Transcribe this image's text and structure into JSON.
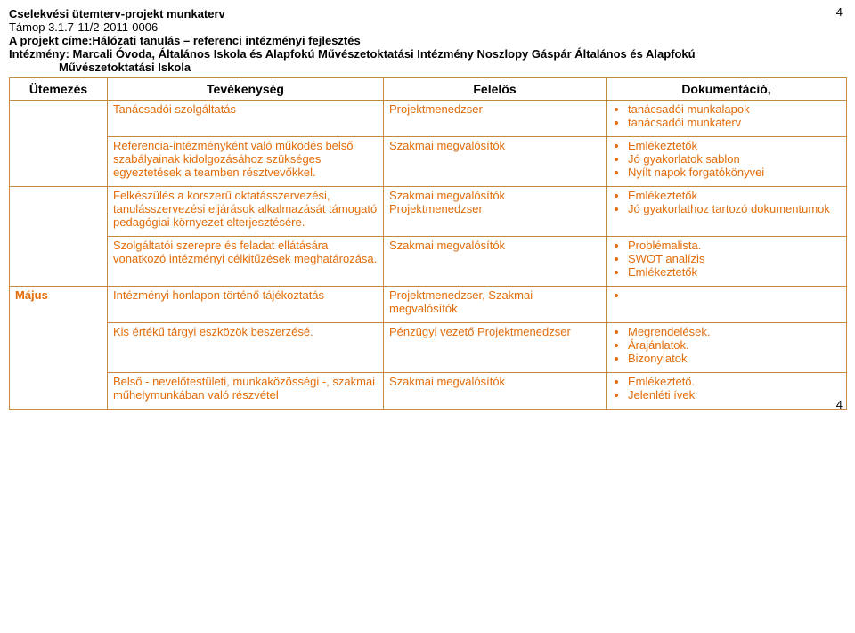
{
  "page_number_top": "4",
  "page_number_bottom": "4",
  "header": {
    "title": "Cselekvési ütemterv-projekt munkaterv",
    "line2": "Támop 3.1.7-11/2-2011-0006",
    "line3": "A projekt címe:Hálózati tanulás – referenci intézményi fejlesztés",
    "line4": "Intézmény: Marcali Óvoda, Általános Iskola és Alapfokú Művészetoktatási Intézmény Noszlopy Gáspár Általános és Alapfokú",
    "line5": "Művészetoktatási Iskola"
  },
  "columns": {
    "c1": "Ütemezés",
    "c2": "Tevékenység",
    "c3": "Felelős",
    "c4": "Dokumentáció,"
  },
  "rows": [
    {
      "activity": "Tanácsadói szolgáltatás",
      "responsible": "Projektmenedzser",
      "docs": [
        "tanácsadói munkalapok",
        "tanácsadói munkaterv"
      ]
    },
    {
      "activity": "Referencia-intézményként való működés belső szabályainak kidolgozásához szükséges egyeztetések a teamben résztvevőkkel.",
      "responsible": "Szakmai megvalósítók",
      "docs": [
        "Emlékeztetők",
        "Jó gyakorlatok sablon",
        "Nyílt napok forgatókönyvei"
      ]
    },
    {
      "activity": "Felkészülés a korszerű oktatásszervezési, tanulásszervezési eljárások alkalmazását támogató pedagógiai környezet elterjesztésére.",
      "responsible": "Szakmai megvalósítók Projektmenedzser",
      "docs": [
        "Emlékeztetők",
        "Jó gyakorlathoz tartozó dokumentumok"
      ]
    },
    {
      "activity": "Szolgáltatói szerepre és feladat ellátására vonatkozó intézményi célkitűzések meghatározása.",
      "responsible": "Szakmai megvalósítók",
      "docs": [
        "Problémalista.",
        "SWOT analízis",
        "Emlékeztetők"
      ]
    },
    {
      "month": "Május",
      "activity": "Intézményi honlapon történő tájékoztatás",
      "responsible": "Projektmenedzser, Szakmai megvalósítók",
      "docs": [
        ""
      ],
      "docs_empty": true
    },
    {
      "activity": "Kis értékű tárgyi eszközök beszerzésé.",
      "responsible": "Pénzügyi vezető Projektmenedzser",
      "docs": [
        "Megrendelések.",
        "Árajánlatok.",
        "Bizonylatok"
      ]
    },
    {
      "activity": "Belső - nevelőtestületi, munkaközösségi -, szakmai műhelymunkában való részvétel",
      "responsible": "Szakmai megvalósítók",
      "docs_indent": [
        "Emlékeztető."
      ],
      "docs": [
        "Jelenléti ívek"
      ]
    }
  ]
}
